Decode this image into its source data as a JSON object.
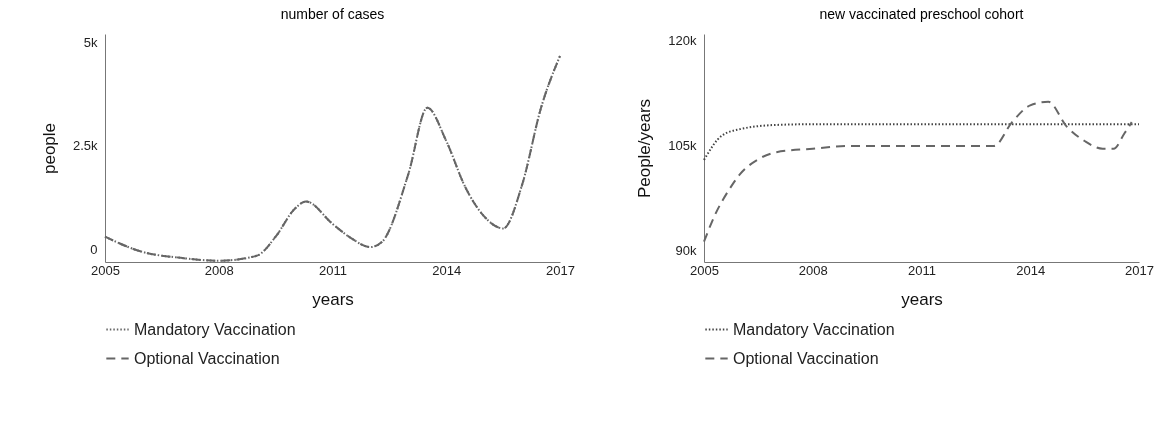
{
  "chart_data": [
    {
      "type": "line",
      "title": "number of cases",
      "xlabel": "years",
      "ylabel": "people",
      "xlim": [
        2005,
        2017
      ],
      "xticks": [
        2005,
        2008,
        2011,
        2014,
        2017
      ],
      "ylim": [
        -300,
        5200
      ],
      "yticks": [
        0,
        {
          "value": 2500,
          "label": "2.5k"
        },
        {
          "value": 5000,
          "label": "5k"
        }
      ],
      "grid": false,
      "legend": "bottom",
      "x": [
        2005,
        2006,
        2007,
        2008,
        2009,
        2009.5,
        2010,
        2010.3,
        2011,
        2011.5,
        2012,
        2012.3,
        2013,
        2013.5,
        2014,
        2014.5,
        2015,
        2015.5,
        2016,
        2016.5,
        2017
      ],
      "series": [
        {
          "name": "Mandatory Vaccination",
          "color": "#666666",
          "line_style": "dotted",
          "values": [
            310,
            -60,
            -200,
            -270,
            -150,
            310,
            980,
            1160,
            620,
            270,
            60,
            180,
            1820,
            3420,
            2620,
            1510,
            800,
            510,
            1560,
            3420,
            4670
          ]
        },
        {
          "name": "Optional Vaccination",
          "color": "#666666",
          "line_style": "dashed",
          "values": [
            310,
            -60,
            -200,
            -270,
            -150,
            310,
            980,
            1160,
            620,
            270,
            60,
            180,
            1820,
            3420,
            2620,
            1510,
            800,
            510,
            1560,
            3420,
            4670
          ]
        }
      ]
    },
    {
      "type": "line",
      "title": "new vaccinated preschool cohort",
      "xlabel": "years",
      "ylabel": "People/years",
      "xlim": [
        2005,
        2017
      ],
      "xticks": [
        2005,
        2008,
        2011,
        2014,
        2017
      ],
      "ylim": [
        88400,
        121000
      ],
      "yticks": [
        {
          "value": 90000,
          "label": "90k"
        },
        {
          "value": 105000,
          "label": "105k"
        },
        {
          "value": 120000,
          "label": "120k"
        }
      ],
      "grid": false,
      "legend": "bottom",
      "series": [
        {
          "name": "Mandatory Vaccination",
          "color": "#444444",
          "line_style": "dotted",
          "x": [
            2005,
            2005.5,
            2006,
            2007,
            2008,
            2011,
            2014,
            2017
          ],
          "values": [
            103000,
            106500,
            107400,
            108000,
            108100,
            108100,
            108100,
            108100
          ]
        },
        {
          "name": "Optional Vaccination",
          "color": "#666666",
          "line_style": "dashed",
          "x": [
            2005,
            2005.3,
            2005.7,
            2006,
            2006.5,
            2007,
            2008,
            2009,
            2013,
            2013.5,
            2014,
            2014.5,
            2015,
            2015.5,
            2016,
            2016.3,
            2016.6,
            2016.8
          ],
          "values": [
            91300,
            95100,
            98800,
            101000,
            103100,
            104100,
            104600,
            105000,
            105000,
            108400,
            110800,
            111300,
            107800,
            105700,
            104600,
            104600,
            106800,
            108400
          ]
        }
      ]
    }
  ]
}
